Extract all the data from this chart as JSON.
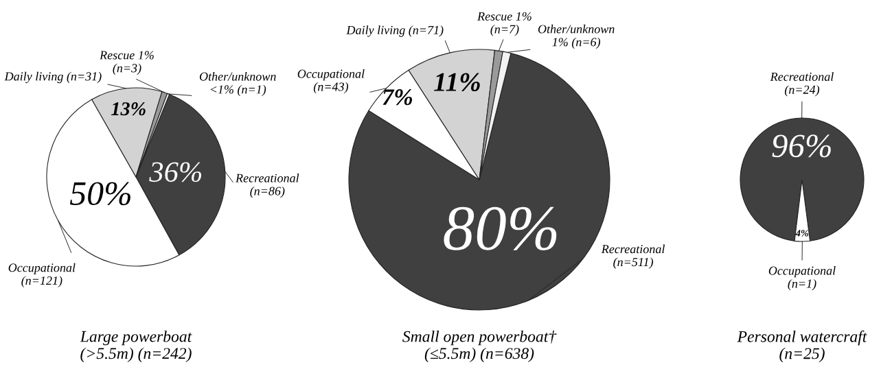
{
  "chart_data": [
    {
      "type": "pie",
      "title": "Large powerboat\n(>5.5m) (n=242)",
      "categories": [
        "Recreational\n(n=86)",
        "Occupational\n(n=121)",
        "Daily living (n=31)",
        "Rescue 1%\n(n=3)",
        "Other/unknown\n<1% (n=1)"
      ],
      "values": [
        36,
        50,
        13,
        1,
        0.4
      ],
      "value_labels": [
        "36%",
        "50%",
        "13%",
        null,
        null
      ],
      "colors": [
        "#404040",
        "#ffffff",
        "#d3d3d3",
        "#9a9a9a",
        "#f2f2f2"
      ]
    },
    {
      "type": "pie",
      "title": "Small open powerboat†\n(≤5.5m) (n=638)",
      "categories": [
        "Recreational\n(n=511)",
        "Occupational\n(n=43)",
        "Daily living (n=71)",
        "Rescue 1%\n(n=7)",
        "Other/unknown\n1% (n=6)"
      ],
      "values": [
        80,
        7,
        11,
        1,
        1
      ],
      "value_labels": [
        "80%",
        "7%",
        "11%",
        null,
        null
      ],
      "colors": [
        "#404040",
        "#ffffff",
        "#d3d3d3",
        "#9a9a9a",
        "#f2f2f2"
      ]
    },
    {
      "type": "pie",
      "title": "Personal watercraft\n(n=25)",
      "categories": [
        "Recreational\n(n=24)",
        "Occupational\n(n=1)"
      ],
      "values": [
        96,
        4
      ],
      "value_labels": [
        "96%",
        "4%"
      ],
      "colors": [
        "#404040",
        "#ffffff"
      ]
    }
  ]
}
